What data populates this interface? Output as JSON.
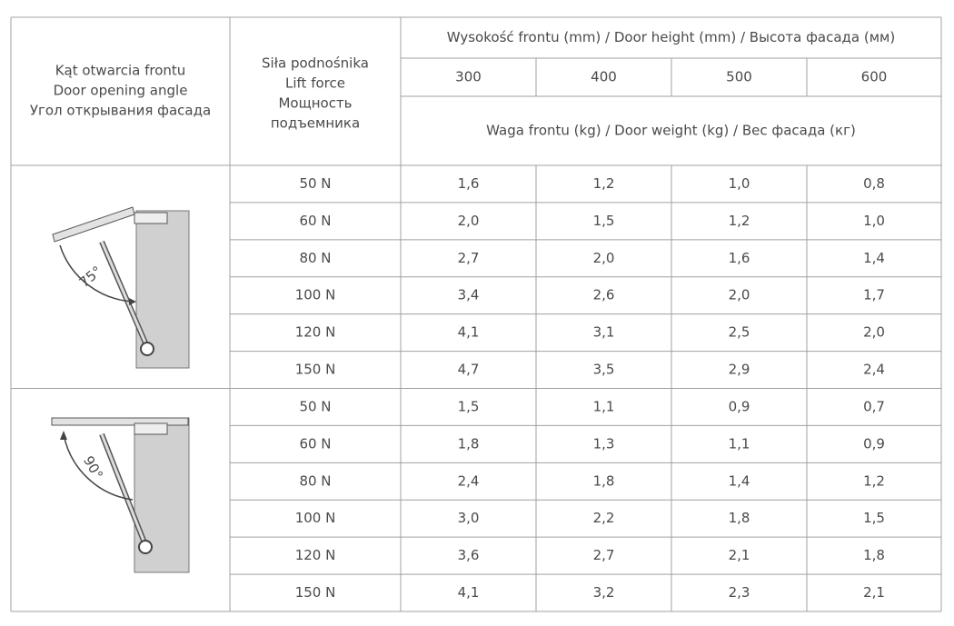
{
  "header": {
    "angle_lines": [
      "Kąt otwarcia frontu",
      "Door opening angle",
      "Угол открывания фасада"
    ],
    "force_lines": [
      "Siła podnośnika",
      "Lift force",
      "Мощность",
      "подъемника"
    ],
    "door_height": "Wysokość frontu (mm) / Door height (mm) / Высота фасада (мм)",
    "heights": [
      "300",
      "400",
      "500",
      "600"
    ],
    "door_weight": "Waga frontu (kg) / Door weight (kg) / Вес фасада (кг)"
  },
  "groups": [
    {
      "angle": "75°",
      "rows": [
        {
          "force": "50 N",
          "weights": [
            "1,6",
            "1,2",
            "1,0",
            "0,8"
          ]
        },
        {
          "force": "60 N",
          "weights": [
            "2,0",
            "1,5",
            "1,2",
            "1,0"
          ]
        },
        {
          "force": "80 N",
          "weights": [
            "2,7",
            "2,0",
            "1,6",
            "1,4"
          ]
        },
        {
          "force": "100 N",
          "weights": [
            "3,4",
            "2,6",
            "2,0",
            "1,7"
          ]
        },
        {
          "force": "120 N",
          "weights": [
            "4,1",
            "3,1",
            "2,5",
            "2,0"
          ]
        },
        {
          "force": "150 N",
          "weights": [
            "4,7",
            "3,5",
            "2,9",
            "2,4"
          ]
        }
      ]
    },
    {
      "angle": "90°",
      "rows": [
        {
          "force": "50 N",
          "weights": [
            "1,5",
            "1,1",
            "0,9",
            "0,7"
          ]
        },
        {
          "force": "60 N",
          "weights": [
            "1,8",
            "1,3",
            "1,1",
            "0,9"
          ]
        },
        {
          "force": "80 N",
          "weights": [
            "2,4",
            "1,8",
            "1,4",
            "1,2"
          ]
        },
        {
          "force": "100 N",
          "weights": [
            "3,0",
            "2,2",
            "1,8",
            "1,5"
          ]
        },
        {
          "force": "120 N",
          "weights": [
            "3,6",
            "2,7",
            "2,1",
            "1,8"
          ]
        },
        {
          "force": "150 N",
          "weights": [
            "4,1",
            "3,2",
            "2,3",
            "2,1"
          ]
        }
      ]
    }
  ]
}
